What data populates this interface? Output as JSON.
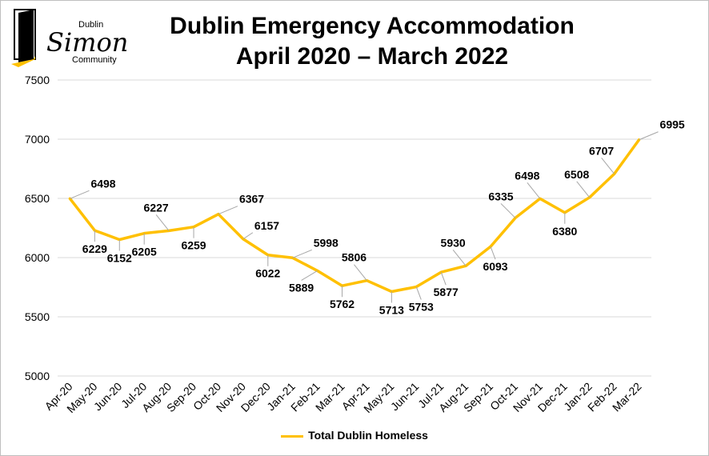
{
  "logo": {
    "top_text": "Dublin",
    "main_text": "Simon",
    "bottom_text": "Community",
    "brand_color": "#ffc000"
  },
  "chart_data": {
    "type": "line",
    "title_line1": "Dublin Emergency Accommodation",
    "title_line2": "April 2020 – March 2022",
    "xlabel": "",
    "ylabel": "",
    "ylim": [
      5000,
      7500
    ],
    "yticks": [
      5000,
      5500,
      6000,
      6500,
      7000,
      7500
    ],
    "grid": true,
    "legend_position": "bottom",
    "categories": [
      "Apr-20",
      "May-20",
      "Jun-20",
      "Jul-20",
      "Aug-20",
      "Sep-20",
      "Oct-20",
      "Nov-20",
      "Dec-20",
      "Jan-21",
      "Feb-21",
      "Mar-21",
      "Apr-21",
      "May-21",
      "Jun-21",
      "Jul-21",
      "Aug-21",
      "Sep-21",
      "Oct-21",
      "Nov-21",
      "Dec-21",
      "Jan-22",
      "Feb-22",
      "Mar-22"
    ],
    "series": [
      {
        "name": "Total Dublin Homeless",
        "color": "#ffc000",
        "values": [
          6498,
          6229,
          6152,
          6205,
          6227,
          6259,
          6367,
          6157,
          6022,
          5998,
          5889,
          5762,
          5806,
          5713,
          5753,
          5877,
          5930,
          6093,
          6335,
          6498,
          6380,
          6508,
          6707,
          6995
        ]
      }
    ]
  }
}
